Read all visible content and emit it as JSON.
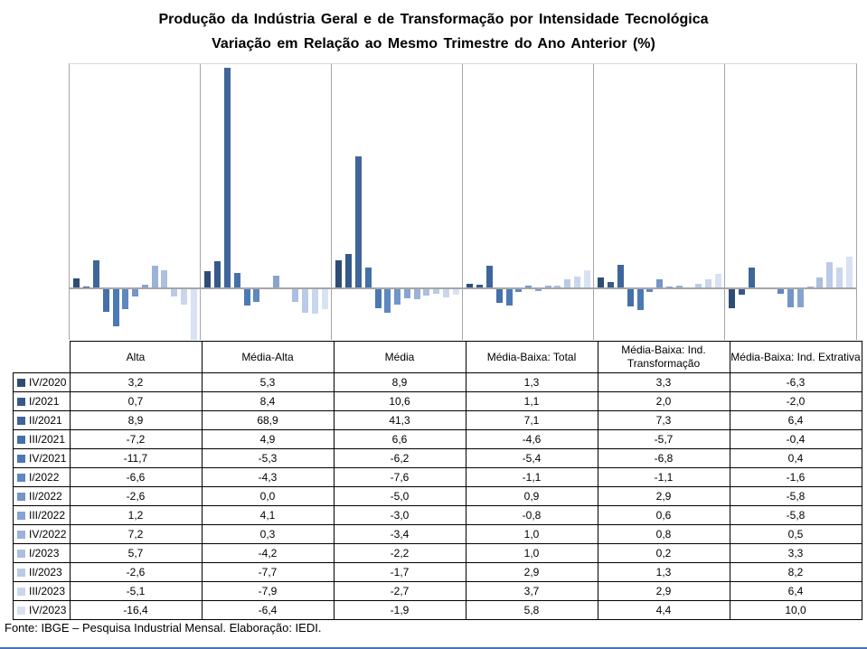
{
  "title": {
    "line1": "Produção da Indústria Geral e de Transformação por Intensidade Tecnológica",
    "line2": "Variação em Relação ao Mesmo Trimestre do Ano Anterior (%)"
  },
  "footer": {
    "text": "Fonte: IBGE – Pesquisa Industrial Mensal. Elaboração: IEDI."
  },
  "colors": {
    "axis_gray": "#a6a6a6",
    "plot_top_border": "#d9d9d9",
    "table_border": "#000000",
    "bottom_rule_blue": "#4472c4"
  },
  "chart_data": {
    "type": "bar",
    "title": "Produção da Indústria Geral e de Transformação por Intensidade Tecnológica — Variação em Relação ao Mesmo Trimestre do Ano Anterior (%)",
    "categories": [
      "Alta",
      "Média-Alta",
      "Média",
      "Média-Baixa: Total",
      "Média-Baixa: Ind. Transformação",
      "Média-Baixa: Ind. Extrativa"
    ],
    "series": [
      {
        "name": "IV/2020",
        "color": "#2e4d75",
        "values": [
          3.2,
          5.3,
          8.9,
          1.3,
          3.3,
          -6.3
        ]
      },
      {
        "name": "I/2021",
        "color": "#36598a",
        "values": [
          0.7,
          8.4,
          10.6,
          1.1,
          2.0,
          -2.0
        ]
      },
      {
        "name": "II/2021",
        "color": "#3f659b",
        "values": [
          8.9,
          68.9,
          41.3,
          7.1,
          7.3,
          6.4
        ]
      },
      {
        "name": "III/2021",
        "color": "#4570aa",
        "values": [
          -7.2,
          4.9,
          6.6,
          -4.6,
          -5.7,
          -0.4
        ]
      },
      {
        "name": "IV/2021",
        "color": "#4b79b6",
        "values": [
          -11.7,
          -5.3,
          -6.2,
          -5.4,
          -6.8,
          0.4
        ]
      },
      {
        "name": "I/2022",
        "color": "#5f87c0",
        "values": [
          -6.6,
          -4.3,
          -7.6,
          -1.1,
          -1.1,
          -1.6
        ]
      },
      {
        "name": "II/2022",
        "color": "#7395c8",
        "values": [
          -2.6,
          0.0,
          -5.0,
          0.9,
          2.9,
          -5.8
        ]
      },
      {
        "name": "III/2022",
        "color": "#87a4d1",
        "values": [
          1.2,
          4.1,
          -3.0,
          -0.8,
          0.6,
          -5.8
        ]
      },
      {
        "name": "IV/2022",
        "color": "#9bb2d9",
        "values": [
          7.2,
          0.3,
          -3.4,
          1.0,
          0.8,
          0.5
        ]
      },
      {
        "name": "I/2023",
        "color": "#abbfe0",
        "values": [
          5.7,
          -4.2,
          -2.2,
          1.0,
          0.2,
          3.3
        ]
      },
      {
        "name": "II/2023",
        "color": "#bacbe7",
        "values": [
          -2.6,
          -7.7,
          -1.7,
          2.9,
          1.3,
          8.2
        ]
      },
      {
        "name": "III/2023",
        "color": "#c9d6ee",
        "values": [
          -5.1,
          -7.9,
          -2.7,
          3.7,
          2.9,
          6.4
        ]
      },
      {
        "name": "IV/2023",
        "color": "#d8e2f4",
        "values": [
          -16.4,
          -6.4,
          -1.9,
          5.8,
          4.4,
          10.0
        ]
      }
    ],
    "ylim": [
      -16.6,
      70
    ],
    "xlabel": "",
    "ylabel": "",
    "grid": "vertical-category-separators-only",
    "zero_line": true,
    "legend_position": "table-left-column",
    "number_format": "comma-decimal"
  },
  "table": {
    "columns": [
      "Alta",
      "Média-Alta",
      "Média",
      "Média-Baixa: Total",
      "Média-Baixa: Ind. Transformação",
      "Média-Baixa: Ind. Extrativa"
    ],
    "rows": [
      {
        "quarter": "IV/2020",
        "values": [
          "3,2",
          "5,3",
          "8,9",
          "1,3",
          "3,3",
          "-6,3"
        ]
      },
      {
        "quarter": "I/2021",
        "values": [
          "0,7",
          "8,4",
          "10,6",
          "1,1",
          "2,0",
          "-2,0"
        ]
      },
      {
        "quarter": "II/2021",
        "values": [
          "8,9",
          "68,9",
          "41,3",
          "7,1",
          "7,3",
          "6,4"
        ]
      },
      {
        "quarter": "III/2021",
        "values": [
          "-7,2",
          "4,9",
          "6,6",
          "-4,6",
          "-5,7",
          "-0,4"
        ]
      },
      {
        "quarter": "IV/2021",
        "values": [
          "-11,7",
          "-5,3",
          "-6,2",
          "-5,4",
          "-6,8",
          "0,4"
        ]
      },
      {
        "quarter": "I/2022",
        "values": [
          "-6,6",
          "-4,3",
          "-7,6",
          "-1,1",
          "-1,1",
          "-1,6"
        ]
      },
      {
        "quarter": "II/2022",
        "values": [
          "-2,6",
          "0,0",
          "-5,0",
          "0,9",
          "2,9",
          "-5,8"
        ]
      },
      {
        "quarter": "III/2022",
        "values": [
          "1,2",
          "4,1",
          "-3,0",
          "-0,8",
          "0,6",
          "-5,8"
        ]
      },
      {
        "quarter": "IV/2022",
        "values": [
          "7,2",
          "0,3",
          "-3,4",
          "1,0",
          "0,8",
          "0,5"
        ]
      },
      {
        "quarter": "I/2023",
        "values": [
          "5,7",
          "-4,2",
          "-2,2",
          "1,0",
          "0,2",
          "3,3"
        ]
      },
      {
        "quarter": "II/2023",
        "values": [
          "-2,6",
          "-7,7",
          "-1,7",
          "2,9",
          "1,3",
          "8,2"
        ]
      },
      {
        "quarter": "III/2023",
        "values": [
          "-5,1",
          "-7,9",
          "-2,7",
          "3,7",
          "2,9",
          "6,4"
        ]
      },
      {
        "quarter": "IV/2023",
        "values": [
          "-16,4",
          "-6,4",
          "-1,9",
          "5,8",
          "4,4",
          "10,0"
        ]
      }
    ]
  }
}
